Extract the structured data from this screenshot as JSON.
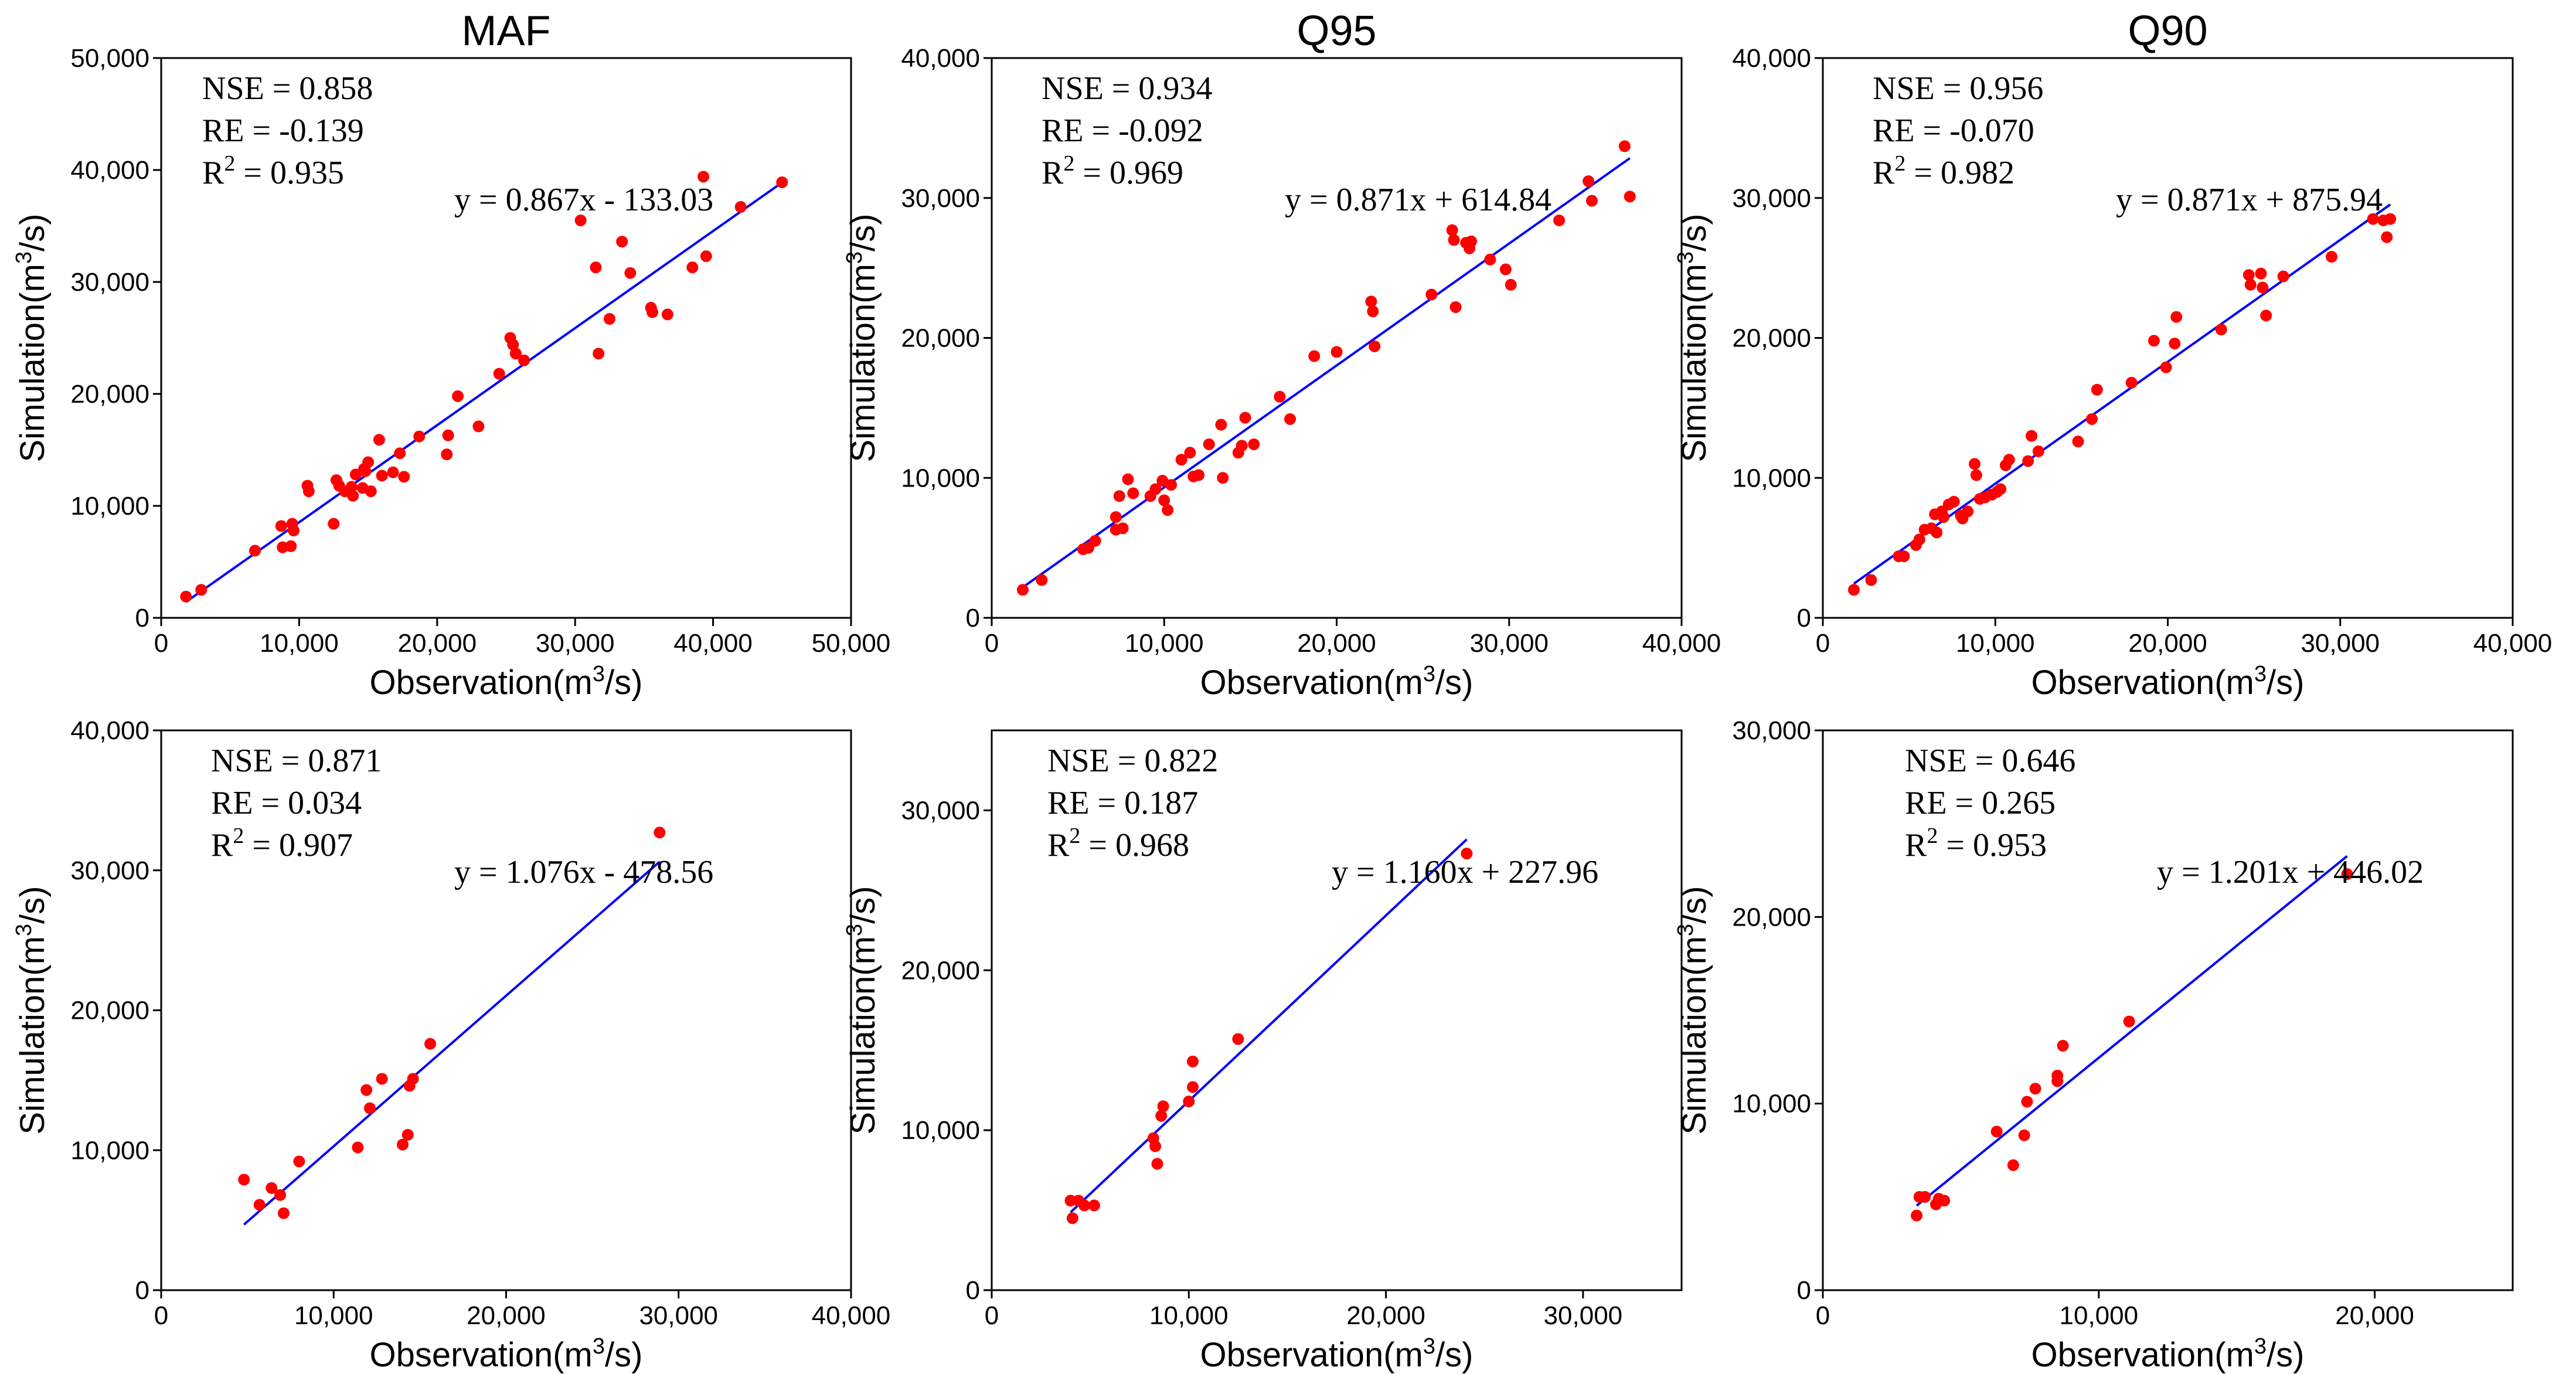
{
  "figure": {
    "axis_labels": {
      "x_prefix": "Observation(m",
      "x_sup": "3",
      "x_suffix": "/s)",
      "y_prefix": "Simulation(m",
      "y_sup": "3",
      "y_suffix": "/s)"
    },
    "stat_labels": {
      "nse": "NSE = ",
      "re": "RE = ",
      "r2_prefix": "R",
      "r2_sup": "2",
      "r2_suffix": " = "
    }
  },
  "colors": {
    "points": "#ff0000",
    "fit_line": "#0000ff",
    "axes": "#000000"
  },
  "chart_data": [
    {
      "type": "scatter",
      "title": "MAF",
      "xlim": [
        0,
        50000
      ],
      "ylim": [
        0,
        50000
      ],
      "xticks": [
        0,
        10000,
        20000,
        30000,
        40000,
        50000
      ],
      "yticks": [
        0,
        10000,
        20000,
        30000,
        40000,
        50000
      ],
      "xtick_labels": [
        "0",
        "10,000",
        "20,000",
        "30,000",
        "40,000",
        "50,000"
      ],
      "ytick_labels": [
        "0",
        "10,000",
        "20,000",
        "30,000",
        "40,000",
        "50,000"
      ],
      "stats": {
        "nse": "0.858",
        "re": "-0.139",
        "r2": "0.935"
      },
      "equation": "y = 0.867x - 133.03",
      "fit": {
        "slope": 0.867,
        "intercept": -133.03,
        "x_range": [
          1800,
          45000
        ]
      },
      "points": [
        [
          1800,
          1900
        ],
        [
          2900,
          2500
        ],
        [
          6800,
          6000
        ],
        [
          8700,
          8200
        ],
        [
          8800,
          6300
        ],
        [
          9400,
          6400
        ],
        [
          9500,
          8400
        ],
        [
          9600,
          7800
        ],
        [
          10600,
          11800
        ],
        [
          10700,
          11300
        ],
        [
          12500,
          8400
        ],
        [
          12700,
          12300
        ],
        [
          12900,
          11800
        ],
        [
          13300,
          11300
        ],
        [
          13800,
          11700
        ],
        [
          13900,
          10900
        ],
        [
          14100,
          12800
        ],
        [
          14600,
          11600
        ],
        [
          14700,
          13300
        ],
        [
          14800,
          13100
        ],
        [
          15000,
          13900
        ],
        [
          15200,
          11300
        ],
        [
          15800,
          15900
        ],
        [
          16000,
          12700
        ],
        [
          16800,
          13000
        ],
        [
          17300,
          14700
        ],
        [
          17600,
          12600
        ],
        [
          18700,
          16200
        ],
        [
          20700,
          14600
        ],
        [
          20800,
          16300
        ],
        [
          21500,
          19800
        ],
        [
          23000,
          17100
        ],
        [
          24500,
          21800
        ],
        [
          25300,
          25000
        ],
        [
          25500,
          24400
        ],
        [
          25700,
          23600
        ],
        [
          26300,
          23000
        ],
        [
          30400,
          35500
        ],
        [
          31500,
          31300
        ],
        [
          31700,
          23600
        ],
        [
          32500,
          26700
        ],
        [
          33400,
          33600
        ],
        [
          34000,
          30800
        ],
        [
          35500,
          27700
        ],
        [
          35600,
          27300
        ],
        [
          36700,
          27100
        ],
        [
          38500,
          31300
        ],
        [
          39300,
          39400
        ],
        [
          39500,
          32300
        ],
        [
          42000,
          36700
        ],
        [
          45000,
          38900
        ]
      ]
    },
    {
      "type": "scatter",
      "title": "Q95",
      "xlim": [
        0,
        40000
      ],
      "ylim": [
        0,
        40000
      ],
      "xticks": [
        0,
        10000,
        20000,
        30000,
        40000
      ],
      "yticks": [
        0,
        10000,
        20000,
        30000,
        40000
      ],
      "xtick_labels": [
        "0",
        "10,000",
        "20,000",
        "30,000",
        "40,000"
      ],
      "ytick_labels": [
        "0",
        "10,000",
        "20,000",
        "30,000",
        "40,000"
      ],
      "stats": {
        "nse": "0.934",
        "re": "-0.092",
        "r2": "0.969"
      },
      "equation": "y = 0.871x + 614.84",
      "fit": {
        "slope": 0.871,
        "intercept": 614.84,
        "x_range": [
          1800,
          37000
        ]
      },
      "points": [
        [
          1800,
          2000
        ],
        [
          2900,
          2700
        ],
        [
          5300,
          4900
        ],
        [
          5600,
          5000
        ],
        [
          6000,
          5500
        ],
        [
          7200,
          6300
        ],
        [
          7200,
          7200
        ],
        [
          7400,
          8700
        ],
        [
          7600,
          6400
        ],
        [
          7900,
          9900
        ],
        [
          8200,
          8900
        ],
        [
          9200,
          8700
        ],
        [
          9500,
          9200
        ],
        [
          9900,
          9800
        ],
        [
          10000,
          8400
        ],
        [
          10200,
          7700
        ],
        [
          10400,
          9500
        ],
        [
          11000,
          11300
        ],
        [
          11500,
          11800
        ],
        [
          11700,
          10100
        ],
        [
          12000,
          10200
        ],
        [
          12600,
          12400
        ],
        [
          13300,
          13800
        ],
        [
          13400,
          10000
        ],
        [
          14300,
          11800
        ],
        [
          14500,
          12300
        ],
        [
          14700,
          14300
        ],
        [
          15200,
          12400
        ],
        [
          16700,
          15800
        ],
        [
          17300,
          14200
        ],
        [
          18700,
          18700
        ],
        [
          20000,
          19000
        ],
        [
          22000,
          22600
        ],
        [
          22100,
          21900
        ],
        [
          22200,
          19400
        ],
        [
          25500,
          23100
        ],
        [
          26700,
          27700
        ],
        [
          26800,
          27000
        ],
        [
          26900,
          22200
        ],
        [
          27500,
          26800
        ],
        [
          27700,
          26400
        ],
        [
          27800,
          26900
        ],
        [
          28900,
          25600
        ],
        [
          29800,
          24900
        ],
        [
          30100,
          23800
        ],
        [
          32900,
          28400
        ],
        [
          34600,
          31200
        ],
        [
          34800,
          29800
        ],
        [
          36700,
          33700
        ],
        [
          37000,
          30100
        ]
      ]
    },
    {
      "type": "scatter",
      "title": "Q90",
      "xlim": [
        0,
        40000
      ],
      "ylim": [
        0,
        40000
      ],
      "xticks": [
        0,
        10000,
        20000,
        30000,
        40000
      ],
      "yticks": [
        0,
        10000,
        20000,
        30000,
        40000
      ],
      "xtick_labels": [
        "0",
        "10,000",
        "20,000",
        "30,000",
        "40,000"
      ],
      "ytick_labels": [
        "0",
        "10,000",
        "20,000",
        "30,000",
        "40,000"
      ],
      "stats": {
        "nse": "0.956",
        "re": "-0.070",
        "r2": "0.982"
      },
      "equation": "y = 0.871x + 875.94",
      "fit": {
        "slope": 0.871,
        "intercept": 875.94,
        "x_range": [
          1800,
          32900
        ]
      },
      "points": [
        [
          1800,
          2000
        ],
        [
          2800,
          2700
        ],
        [
          4400,
          4400
        ],
        [
          4700,
          4400
        ],
        [
          5400,
          5200
        ],
        [
          5600,
          5600
        ],
        [
          5900,
          6300
        ],
        [
          6300,
          6400
        ],
        [
          6500,
          7400
        ],
        [
          6600,
          6100
        ],
        [
          6900,
          7600
        ],
        [
          7000,
          7200
        ],
        [
          7300,
          8100
        ],
        [
          7600,
          8300
        ],
        [
          8000,
          7300
        ],
        [
          8100,
          7100
        ],
        [
          8400,
          7600
        ],
        [
          8800,
          11000
        ],
        [
          8900,
          10200
        ],
        [
          9100,
          8500
        ],
        [
          9400,
          8600
        ],
        [
          9800,
          8800
        ],
        [
          10100,
          9000
        ],
        [
          10300,
          9200
        ],
        [
          10600,
          10900
        ],
        [
          10800,
          11300
        ],
        [
          11900,
          11200
        ],
        [
          12100,
          13000
        ],
        [
          12500,
          11900
        ],
        [
          14800,
          12600
        ],
        [
          15600,
          14200
        ],
        [
          15900,
          16300
        ],
        [
          17900,
          16800
        ],
        [
          19200,
          19800
        ],
        [
          19900,
          17900
        ],
        [
          20400,
          19600
        ],
        [
          20500,
          21500
        ],
        [
          23100,
          20600
        ],
        [
          24700,
          24500
        ],
        [
          24800,
          23800
        ],
        [
          25400,
          24600
        ],
        [
          25500,
          23600
        ],
        [
          25700,
          21600
        ],
        [
          26700,
          24400
        ],
        [
          29500,
          25800
        ],
        [
          31900,
          28500
        ],
        [
          32500,
          28400
        ],
        [
          32700,
          27200
        ],
        [
          32900,
          28500
        ]
      ]
    },
    {
      "type": "scatter",
      "title": "",
      "xlim": [
        0,
        40000
      ],
      "ylim": [
        0,
        40000
      ],
      "xticks": [
        0,
        10000,
        20000,
        30000,
        40000
      ],
      "yticks": [
        0,
        10000,
        20000,
        30000,
        40000
      ],
      "xtick_labels": [
        "0",
        "10,000",
        "20,000",
        "30,000",
        "40,000"
      ],
      "ytick_labels": [
        "0",
        "10,000",
        "20,000",
        "30,000",
        "40,000"
      ],
      "stats": {
        "nse": "0.871",
        "re": "0.034",
        "r2": "0.907"
      },
      "equation": "y = 1.076x - 478.56",
      "fit": {
        "slope": 1.076,
        "intercept": -478.56,
        "x_range": [
          4800,
          28900
        ]
      },
      "points": [
        [
          4800,
          7900
        ],
        [
          5700,
          6100
        ],
        [
          6400,
          7300
        ],
        [
          6900,
          6800
        ],
        [
          7100,
          5500
        ],
        [
          8000,
          9200
        ],
        [
          11400,
          10200
        ],
        [
          11900,
          14300
        ],
        [
          12100,
          13000
        ],
        [
          12800,
          15100
        ],
        [
          14000,
          10400
        ],
        [
          14300,
          11100
        ],
        [
          14400,
          14600
        ],
        [
          14600,
          15100
        ],
        [
          15600,
          17600
        ],
        [
          28900,
          32700
        ]
      ]
    },
    {
      "type": "scatter",
      "title": "",
      "xlim": [
        0,
        35000
      ],
      "ylim": [
        0,
        35000
      ],
      "xticks": [
        0,
        10000,
        20000,
        30000
      ],
      "yticks": [
        0,
        10000,
        20000,
        30000
      ],
      "xtick_labels": [
        "0",
        "10,000",
        "20,000",
        "30,000"
      ],
      "ytick_labels": [
        "0",
        "10,000",
        "20,000",
        "30,000"
      ],
      "stats": {
        "nse": "0.822",
        "re": "0.187",
        "r2": "0.968"
      },
      "equation": "y = 1.160x + 227.96",
      "fit": {
        "slope": 1.16,
        "intercept": 227.96,
        "x_range": [
          4000,
          24100
        ]
      },
      "points": [
        [
          4000,
          5600
        ],
        [
          4100,
          4500
        ],
        [
          4400,
          5600
        ],
        [
          4700,
          5300
        ],
        [
          5200,
          5300
        ],
        [
          8200,
          9500
        ],
        [
          8300,
          9000
        ],
        [
          8400,
          7900
        ],
        [
          8600,
          10900
        ],
        [
          8700,
          11500
        ],
        [
          10000,
          11800
        ],
        [
          10200,
          14300
        ],
        [
          10200,
          12700
        ],
        [
          12500,
          15700
        ],
        [
          24100,
          27300
        ]
      ]
    },
    {
      "type": "scatter",
      "title": "",
      "xlim": [
        0,
        25000
      ],
      "ylim": [
        0,
        30000
      ],
      "xticks": [
        0,
        10000,
        20000
      ],
      "yticks": [
        0,
        10000,
        20000,
        30000
      ],
      "xtick_labels": [
        "0",
        "10,000",
        "20,000"
      ],
      "ytick_labels": [
        "0",
        "10,000",
        "20,000",
        "30,000"
      ],
      "stats": {
        "nse": "0.646",
        "re": "0.265",
        "r2": "0.953"
      },
      "equation": "y = 1.201x + 446.02",
      "fit": {
        "slope": 1.201,
        "intercept": 446.02,
        "x_range": [
          3400,
          19000
        ]
      },
      "points": [
        [
          3400,
          4000
        ],
        [
          3500,
          5000
        ],
        [
          3700,
          5000
        ],
        [
          4100,
          4600
        ],
        [
          4200,
          4900
        ],
        [
          4400,
          4800
        ],
        [
          6300,
          8500
        ],
        [
          6900,
          6700
        ],
        [
          7300,
          8300
        ],
        [
          7400,
          10100
        ],
        [
          7700,
          10800
        ],
        [
          8500,
          11500
        ],
        [
          8500,
          11200
        ],
        [
          8700,
          13100
        ],
        [
          11100,
          14400
        ],
        [
          19000,
          22300
        ]
      ]
    }
  ]
}
